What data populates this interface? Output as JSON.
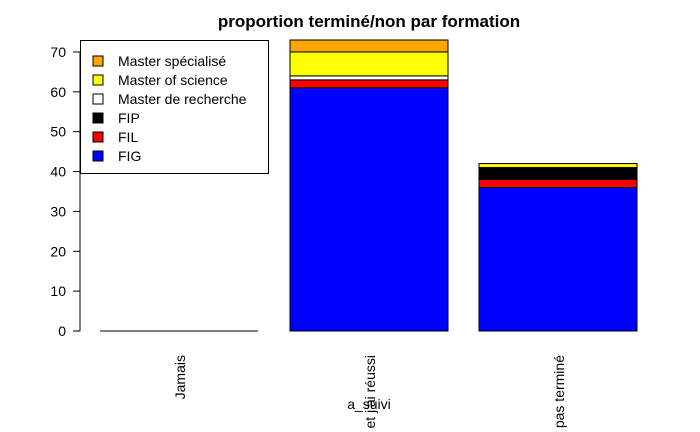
{
  "chart_data": {
    "type": "bar",
    "stacked": true,
    "title": "proportion terminé/non par formation",
    "xlabel": "a_suivi",
    "ylabel": "",
    "ylim": [
      0,
      73
    ],
    "yticks": [
      0,
      10,
      20,
      30,
      40,
      50,
      60,
      70
    ],
    "categories": [
      "Jamais",
      "et j'ai réussi",
      "pas terminé"
    ],
    "legend_position": "top-left",
    "grid": false,
    "series": [
      {
        "name": "FIG",
        "color": "#0000ff",
        "values": [
          0,
          61,
          36
        ]
      },
      {
        "name": "FIL",
        "color": "#ff0000",
        "values": [
          0,
          2,
          2
        ]
      },
      {
        "name": "FIP",
        "color": "#000000",
        "values": [
          0,
          0,
          3
        ]
      },
      {
        "name": "Master de recherche",
        "color": "#ffffff",
        "values": [
          0,
          1,
          0
        ]
      },
      {
        "name": "Master of science",
        "color": "#ffff00",
        "values": [
          0,
          6,
          1
        ]
      },
      {
        "name": "Master spécialisé",
        "color": "#ffa500",
        "values": [
          0,
          3,
          0
        ]
      }
    ]
  }
}
